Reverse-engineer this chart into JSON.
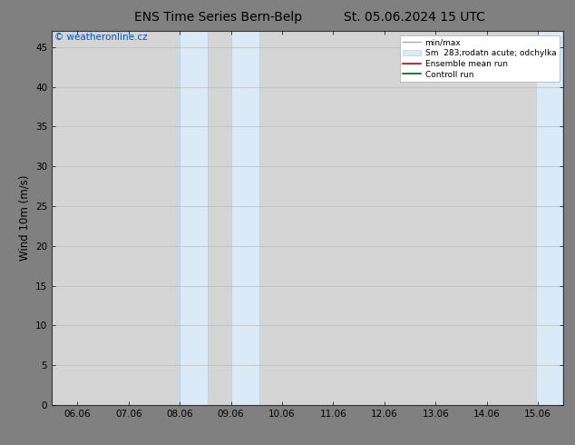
{
  "title": "ENS Time Series Bern-Belp",
  "title_date": "St. 05.06.2024 15 UTC",
  "ylabel": "Wind 10m (m/s)",
  "watermark": "© weatheronline.cz",
  "x_labels": [
    "06.06",
    "07.06",
    "08.06",
    "09.06",
    "10.06",
    "11.06",
    "12.06",
    "13.06",
    "14.06",
    "15.06"
  ],
  "x_values": [
    0,
    1,
    2,
    3,
    4,
    5,
    6,
    7,
    8,
    9
  ],
  "ylim": [
    0,
    47
  ],
  "yticks": [
    0,
    5,
    10,
    15,
    20,
    25,
    30,
    35,
    40,
    45
  ],
  "shaded_bands": [
    {
      "xmin": 2.0,
      "xmax": 2.55,
      "color": "#daeaf7"
    },
    {
      "xmin": 3.0,
      "xmax": 3.55,
      "color": "#daeaf7"
    },
    {
      "xmin": 8.97,
      "xmax": 9.47,
      "color": "#daeaf7"
    }
  ],
  "band_edge_color": "#b8d4e8",
  "band_edge_lw": 0.8,
  "background_color": "#808080",
  "plot_bg_color": "#d4d4d4",
  "legend_entries": [
    {
      "label": "min/max",
      "type": "line",
      "color": "#aaaaaa",
      "lw": 1.0
    },
    {
      "label": "Sm  283;rodatn acute; odchylka",
      "type": "rect",
      "facecolor": "#daeaf7",
      "edgecolor": "#b8d4e8"
    },
    {
      "label": "Ensemble mean run",
      "type": "line",
      "color": "#cc0000",
      "lw": 1.2
    },
    {
      "label": "Controll run",
      "type": "line",
      "color": "#006600",
      "lw": 1.2
    }
  ],
  "grid_color": "#bbbbbb",
  "tick_label_fontsize": 7.5,
  "axis_label_fontsize": 8.5,
  "title_fontsize": 10,
  "watermark_color": "#0055cc",
  "watermark_fontsize": 7.5,
  "spine_color": "#333333",
  "top_bar_color": "#444444",
  "top_bar_height": 0.025
}
